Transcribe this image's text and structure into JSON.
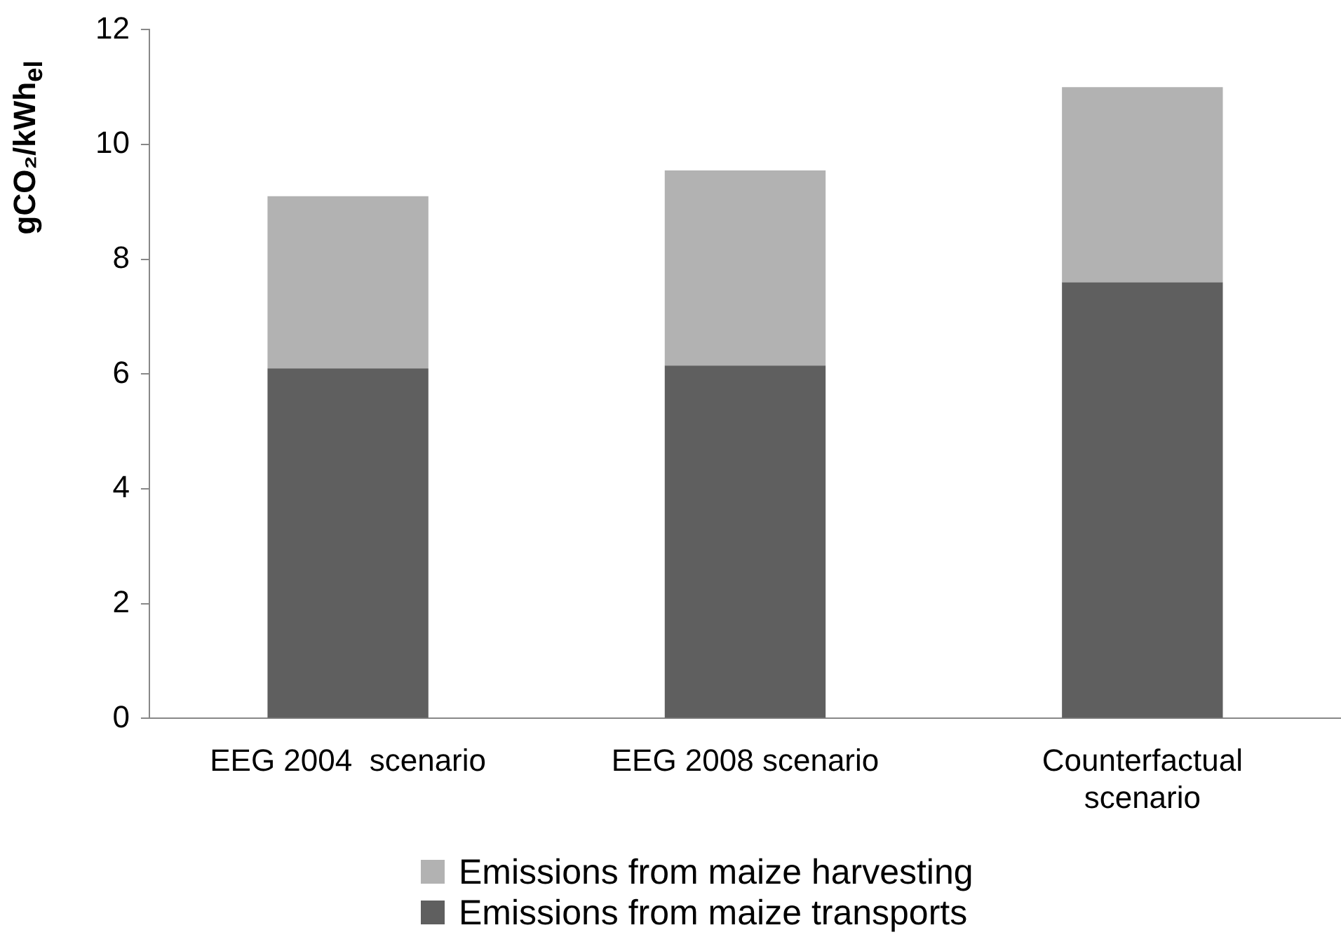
{
  "chart_data": {
    "type": "bar",
    "stacked": true,
    "ylabel": "gCO₂/kWh$_{el}$",
    "categories": [
      "EEG 2004  scenario",
      "EEG 2008 scenario",
      "Counterfactual\nscenario"
    ],
    "series": [
      {
        "name": "Emissions from maize transports",
        "color": "#5f5f5f",
        "values": [
          6.1,
          6.15,
          7.6
        ]
      },
      {
        "name": "Emissions from maize harvesting",
        "color": "#b2b2b2",
        "values": [
          3.0,
          3.4,
          3.4
        ]
      }
    ],
    "ylim": [
      0,
      12
    ],
    "yticks": [
      0,
      2,
      4,
      6,
      8,
      10,
      12
    ],
    "grid": false,
    "legend": "bottom"
  }
}
